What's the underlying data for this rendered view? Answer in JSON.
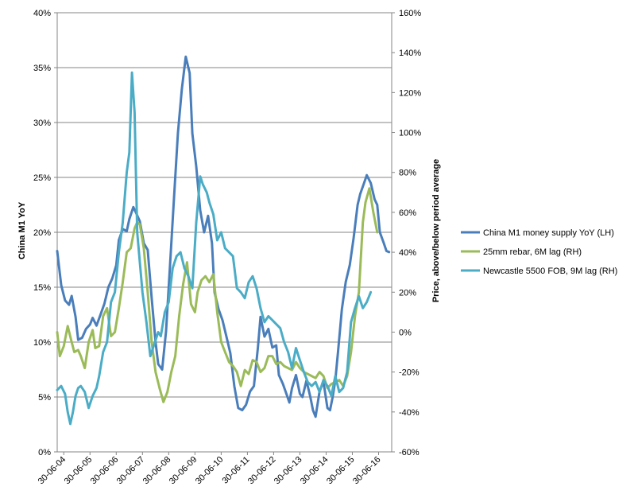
{
  "chart_data": {
    "type": "line",
    "y_left_label": "China M1 YoY",
    "y_right_label": "Price, above/below period average",
    "y_left_ticks": [
      "0%",
      "5%",
      "10%",
      "15%",
      "20%",
      "25%",
      "30%",
      "35%",
      "40%"
    ],
    "y_right_ticks": [
      "-60%",
      "-40%",
      "-20%",
      "0%",
      "20%",
      "40%",
      "60%",
      "80%",
      "100%",
      "120%",
      "140%",
      "160%"
    ],
    "x_tick_labels": [
      "30-06-04",
      "30-06-05",
      "30-06-06",
      "30-06-07",
      "30-06-08",
      "30-06-09",
      "30-06-10",
      "30-06-11",
      "30-06-12",
      "30-06-13",
      "30-06-14",
      "30-06-15",
      "30-06-16"
    ],
    "ylim_left": [
      0,
      40
    ],
    "ylim_right": [
      -60,
      160
    ],
    "xlim": [
      2004.25,
      2017.0
    ],
    "grid": "horizontal",
    "legend_position": "right",
    "series": [
      {
        "name": "China M1 money supply YoY (LH)",
        "axis": "left",
        "color": "#4a7ebb",
        "x": [
          2004.25,
          2004.4,
          2004.55,
          2004.7,
          2004.8,
          2004.95,
          2005.05,
          2005.2,
          2005.35,
          2005.5,
          2005.6,
          2005.75,
          2005.9,
          2006.05,
          2006.2,
          2006.35,
          2006.5,
          2006.6,
          2006.75,
          2006.9,
          2007.0,
          2007.15,
          2007.25,
          2007.4,
          2007.55,
          2007.7,
          2007.85,
          2008.0,
          2008.1,
          2008.25,
          2008.4,
          2008.55,
          2008.7,
          2008.85,
          2009.0,
          2009.15,
          2009.3,
          2009.4,
          2009.55,
          2009.7,
          2009.85,
          2010.0,
          2010.15,
          2010.25,
          2010.4,
          2010.55,
          2010.7,
          2010.85,
          2011.0,
          2011.15,
          2011.3,
          2011.45,
          2011.6,
          2011.75,
          2011.9,
          2012.0,
          2012.15,
          2012.3,
          2012.45,
          2012.6,
          2012.7,
          2012.85,
          2013.0,
          2013.1,
          2013.2,
          2013.35,
          2013.5,
          2013.6,
          2013.75,
          2013.9,
          2014.0,
          2014.1,
          2014.25,
          2014.4,
          2014.55,
          2014.65,
          2014.75,
          2014.85,
          2014.95,
          2015.1,
          2015.25,
          2015.4,
          2015.55,
          2015.7,
          2015.8,
          2015.95,
          2016.05,
          2016.2,
          2016.35,
          2016.45,
          2016.55,
          2016.7,
          2016.8,
          2016.9
        ],
        "values": [
          18.3,
          15.2,
          13.8,
          13.4,
          14.2,
          12.3,
          10.2,
          10.4,
          11.2,
          11.6,
          12.2,
          11.5,
          12.5,
          13.5,
          15.0,
          15.8,
          17.0,
          19.3,
          20.3,
          20.1,
          21.2,
          22.3,
          21.8,
          21.0,
          19.0,
          18.4,
          14.0,
          10.0,
          8.0,
          7.5,
          11.0,
          17.0,
          23.0,
          29.0,
          33.0,
          36.0,
          34.5,
          29.0,
          26.0,
          22.0,
          20.0,
          21.5,
          19.0,
          14.5,
          13.0,
          12.0,
          10.5,
          9.0,
          6.0,
          4.0,
          3.8,
          4.3,
          5.5,
          6.0,
          9.5,
          12.3,
          10.5,
          11.2,
          9.5,
          9.7,
          7.0,
          6.2,
          5.2,
          4.5,
          5.8,
          7.0,
          5.3,
          5.0,
          6.5,
          5.0,
          3.8,
          3.2,
          5.5,
          6.4,
          4.0,
          3.8,
          5.0,
          6.5,
          9.0,
          13.0,
          15.5,
          17.0,
          19.5,
          22.5,
          23.5,
          24.5,
          25.2,
          24.5,
          23.0,
          22.5,
          20.0,
          19.0,
          18.3,
          18.2
        ]
      },
      {
        "name": "25mm rebar, 6M lag (RH)",
        "axis": "right",
        "color": "#9bbb59",
        "x": [
          2004.25,
          2004.35,
          2004.5,
          2004.65,
          2004.8,
          2004.9,
          2005.05,
          2005.15,
          2005.3,
          2005.45,
          2005.6,
          2005.7,
          2005.85,
          2006.0,
          2006.15,
          2006.3,
          2006.45,
          2006.6,
          2006.75,
          2006.9,
          2007.05,
          2007.2,
          2007.3,
          2007.4,
          2007.55,
          2007.7,
          2007.85,
          2008.0,
          2008.15,
          2008.3,
          2008.45,
          2008.6,
          2008.75,
          2008.9,
          2009.05,
          2009.2,
          2009.35,
          2009.5,
          2009.6,
          2009.75,
          2009.9,
          2010.05,
          2010.2,
          2010.35,
          2010.5,
          2010.65,
          2010.8,
          2010.95,
          2011.1,
          2011.25,
          2011.4,
          2011.55,
          2011.7,
          2011.85,
          2012.0,
          2012.15,
          2012.3,
          2012.45,
          2012.6,
          2012.75,
          2012.9,
          2013.05,
          2013.2,
          2013.35,
          2013.5,
          2013.65,
          2013.8,
          2013.95,
          2014.1,
          2014.25,
          2014.4,
          2014.55,
          2014.7,
          2014.85,
          2015.0,
          2015.15,
          2015.3,
          2015.45,
          2015.6,
          2015.75,
          2015.9,
          2016.0,
          2016.15,
          2016.3,
          2016.45
        ],
        "values": [
          0,
          -12,
          -7,
          3,
          -5,
          -10,
          -9,
          -12,
          -18,
          -5,
          1,
          -8,
          -7,
          8,
          12,
          -2,
          0,
          12,
          25,
          40,
          42,
          52,
          55,
          54,
          42,
          20,
          -5,
          -20,
          -28,
          -35,
          -30,
          -20,
          -12,
          8,
          24,
          35,
          14,
          10,
          20,
          26,
          28,
          25,
          29,
          10,
          -5,
          -10,
          -15,
          -17,
          -20,
          -27,
          -19,
          -21,
          -14,
          -15,
          -20,
          -18,
          -12,
          -12,
          -16,
          -15,
          -17,
          -18,
          -19,
          -15,
          -18,
          -20,
          -21,
          -22,
          -23,
          -20,
          -22,
          -28,
          -26,
          -25,
          -24,
          -27,
          -22,
          -10,
          8,
          20,
          55,
          65,
          72,
          60,
          50
        ]
      },
      {
        "name": "Newcastle 5500 FOB, 9M lag (RH)",
        "axis": "right",
        "color": "#4bacc6",
        "x": [
          2004.25,
          2004.4,
          2004.55,
          2004.65,
          2004.75,
          2004.85,
          2004.95,
          2005.05,
          2005.15,
          2005.3,
          2005.45,
          2005.6,
          2005.75,
          2005.85,
          2006.0,
          2006.15,
          2006.3,
          2006.45,
          2006.6,
          2006.75,
          2006.9,
          2007.0,
          2007.1,
          2007.2,
          2007.3,
          2007.4,
          2007.5,
          2007.65,
          2007.8,
          2007.95,
          2008.1,
          2008.2,
          2008.35,
          2008.5,
          2008.65,
          2008.8,
          2008.95,
          2009.1,
          2009.25,
          2009.4,
          2009.55,
          2009.7,
          2009.8,
          2009.95,
          2010.05,
          2010.2,
          2010.35,
          2010.5,
          2010.65,
          2010.8,
          2010.95,
          2011.1,
          2011.25,
          2011.4,
          2011.55,
          2011.7,
          2011.85,
          2012.0,
          2012.15,
          2012.3,
          2012.45,
          2012.6,
          2012.75,
          2012.9,
          2013.05,
          2013.2,
          2013.35,
          2013.5,
          2013.65,
          2013.8,
          2013.95,
          2014.1,
          2014.25,
          2014.4,
          2014.55,
          2014.7,
          2014.85,
          2015.0,
          2015.15,
          2015.3,
          2015.45,
          2015.6,
          2015.75,
          2015.9,
          2016.05,
          2016.2
        ],
        "values": [
          -29,
          -27,
          -31,
          -40,
          -46,
          -40,
          -32,
          -28,
          -27,
          -30,
          -38,
          -32,
          -28,
          -22,
          -10,
          -5,
          15,
          20,
          40,
          55,
          80,
          90,
          130,
          110,
          50,
          35,
          20,
          5,
          -12,
          -6,
          0,
          -2,
          10,
          15,
          32,
          38,
          40,
          32,
          28,
          22,
          55,
          78,
          74,
          70,
          65,
          59,
          46,
          50,
          42,
          40,
          38,
          22,
          20,
          17,
          25,
          28,
          22,
          12,
          5,
          8,
          6,
          4,
          2,
          -5,
          -10,
          -18,
          -8,
          -14,
          -20,
          -25,
          -27,
          -25,
          -30,
          -24,
          -27,
          -32,
          -22,
          -30,
          -28,
          -20,
          5,
          12,
          18,
          12,
          15,
          20
        ]
      }
    ]
  }
}
